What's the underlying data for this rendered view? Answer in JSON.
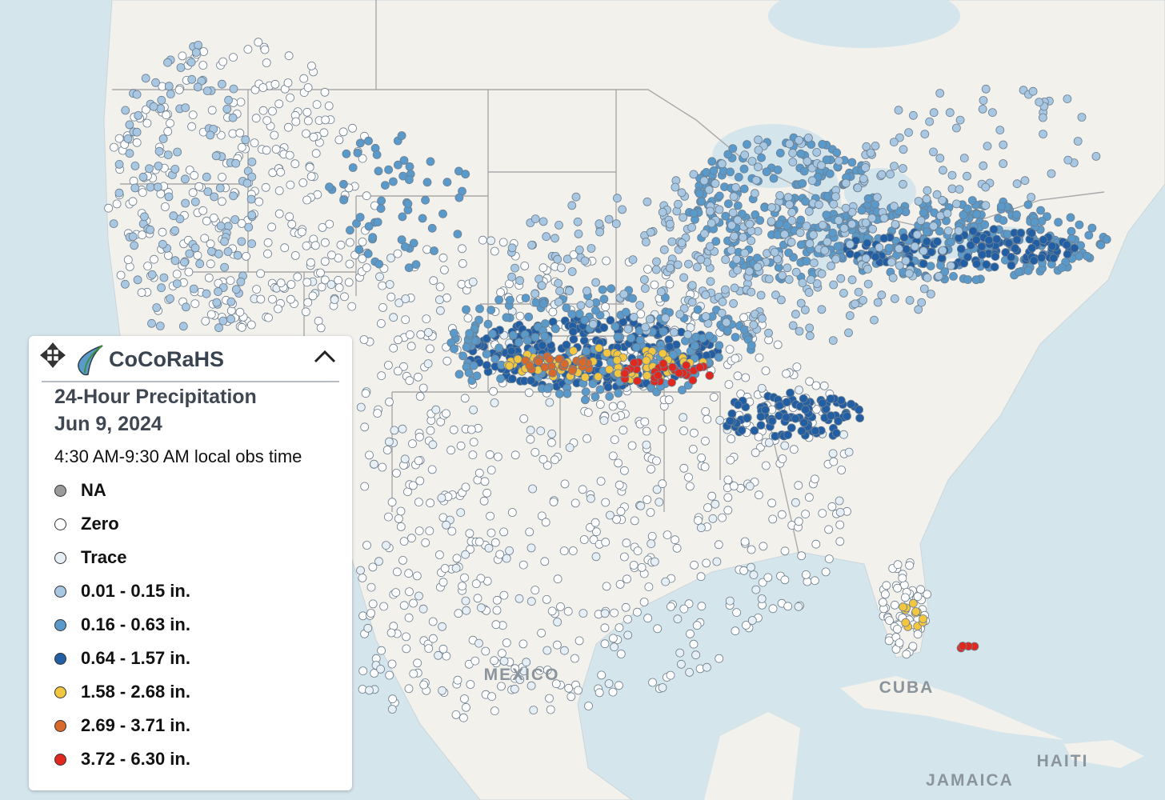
{
  "map": {
    "labels": [
      {
        "text": "MEXICO"
      },
      {
        "text": "CUBA"
      },
      {
        "text": "HAITI"
      },
      {
        "text": "JAMAICA"
      }
    ]
  },
  "legend": {
    "brand": "CoCoRaHS",
    "title": "24-Hour Precipitation",
    "date": "Jun 9, 2024",
    "subtitle": "4:30 AM-9:30 AM local obs time",
    "items": [
      {
        "name": "NA",
        "color": "#9a9a9a"
      },
      {
        "name": "Zero",
        "color": "#ffffff"
      },
      {
        "name": "Trace",
        "color": "#e6eef6"
      },
      {
        "name": "0.01 - 0.15 in.",
        "color": "#a8c7e2"
      },
      {
        "name": "0.16 - 0.63 in.",
        "color": "#5a9acb"
      },
      {
        "name": "0.64 - 1.57 in.",
        "color": "#215ea3"
      },
      {
        "name": "1.58 - 2.68 in.",
        "color": "#f3c640"
      },
      {
        "name": "2.69 - 3.71 in.",
        "color": "#d8692b"
      },
      {
        "name": "3.72 - 6.30 in.",
        "color": "#e1281f"
      }
    ]
  }
}
